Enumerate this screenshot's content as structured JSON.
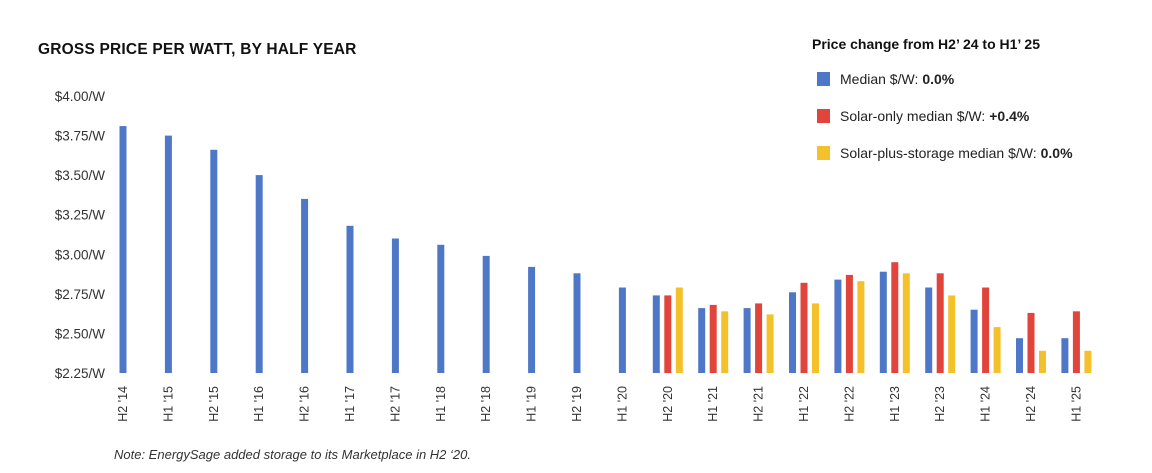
{
  "chart_data": {
    "type": "bar",
    "title": "GROSS PRICE PER WATT, BY HALF YEAR",
    "xlabel": "",
    "ylabel": "",
    "ylim": [
      2.25,
      4.0
    ],
    "yticks": [
      "$4.00/W",
      "$3.75/W",
      "$3.50/W",
      "$3.25/W",
      "$3.00/W",
      "$2.75/W",
      "$2.50/W",
      "$2.25/W"
    ],
    "ytick_values": [
      4.0,
      3.75,
      3.5,
      3.25,
      3.0,
      2.75,
      2.5,
      2.25
    ],
    "grid": false,
    "legend_placement": "top-right",
    "categories": [
      "H2 '14",
      "H1 '15",
      "H2 '15",
      "H1 '16",
      "H2 '16",
      "H1 '17",
      "H2 '17",
      "H1 '18",
      "H2 '18",
      "H1 '19",
      "H2 '19",
      "H1 '20",
      "H2 '20",
      "H1 '21",
      "H2 '21",
      "H1 '22",
      "H2 '22",
      "H1 '23",
      "H2 '23",
      "H1 '24",
      "H2 '24",
      "H1 '25"
    ],
    "series": [
      {
        "key": "median",
        "name": "Median $/W:",
        "color": "#4f77c7",
        "values": [
          3.81,
          3.75,
          3.66,
          3.5,
          3.35,
          3.18,
          3.1,
          3.06,
          2.99,
          2.92,
          2.88,
          2.79,
          2.74,
          2.66,
          2.66,
          2.76,
          2.84,
          2.89,
          2.79,
          2.65,
          2.47,
          2.47
        ]
      },
      {
        "key": "solar_only",
        "name": "Solar-only median $/W:",
        "color": "#e0443b",
        "values": [
          null,
          null,
          null,
          null,
          null,
          null,
          null,
          null,
          null,
          null,
          null,
          null,
          2.74,
          2.68,
          2.69,
          2.82,
          2.87,
          2.95,
          2.88,
          2.79,
          2.63,
          2.64
        ]
      },
      {
        "key": "solar_storage",
        "name": "Solar-plus-storage median $/W:",
        "color": "#f5c12b",
        "values": [
          null,
          null,
          null,
          null,
          null,
          null,
          null,
          null,
          null,
          null,
          null,
          null,
          2.79,
          2.64,
          2.62,
          2.69,
          2.83,
          2.88,
          2.74,
          2.54,
          2.39,
          2.39
        ]
      }
    ]
  },
  "legend": {
    "title": "Price change from H2’ 24 to H1’ 25",
    "items": [
      {
        "label": "Median $/W:",
        "value": "0.0%",
        "color": "#4f77c7"
      },
      {
        "label": "Solar-only median $/W:",
        "value": "+0.4%",
        "color": "#e0443b"
      },
      {
        "label": "Solar-plus-storage median $/W:",
        "value": "0.0%",
        "color": "#f5c12b"
      }
    ]
  },
  "note": "Note: EnergySage added storage to its Marketplace in H2 ‘20."
}
